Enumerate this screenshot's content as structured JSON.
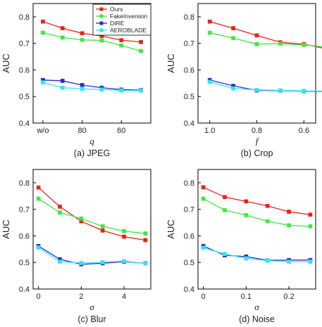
{
  "figure": {
    "background": "#ffffff"
  },
  "legend": {
    "entries": [
      {
        "name": "Ours",
        "color": "#e8221c",
        "marker": "square"
      },
      {
        "name": "FakeInversion",
        "color": "#3fe83f",
        "marker": "square"
      },
      {
        "name": "DIRE",
        "color": "#2a2ad0",
        "marker": "square"
      },
      {
        "name": "AEROBLADE",
        "color": "#2ee8f0",
        "marker": "square"
      }
    ]
  },
  "chart_data": [
    {
      "type": "line",
      "caption": "(a) JPEG",
      "xlabel": "q",
      "ylabel": "AUC",
      "ylim": [
        0.4,
        0.85
      ],
      "yticks": [
        0.4,
        0.5,
        0.6,
        0.7,
        0.8
      ],
      "xlim": [
        -0.5,
        5.5
      ],
      "xticks": [
        {
          "v": 0,
          "label": "w/o"
        },
        {
          "v": 2,
          "label": "80"
        },
        {
          "v": 4,
          "label": "60"
        }
      ],
      "x": [
        0,
        1,
        2,
        3,
        4,
        5
      ],
      "series": [
        {
          "name": "Ours",
          "color": "#e8221c",
          "values": [
            0.782,
            0.757,
            0.738,
            0.728,
            0.712,
            0.705
          ]
        },
        {
          "name": "FakeInversion",
          "color": "#3fe83f",
          "values": [
            0.74,
            0.722,
            0.713,
            0.711,
            0.692,
            0.671
          ]
        },
        {
          "name": "DIRE",
          "color": "#2a2ad0",
          "values": [
            0.562,
            0.559,
            0.543,
            0.533,
            0.526,
            0.524
          ]
        },
        {
          "name": "AEROBLADE",
          "color": "#2ee8f0",
          "values": [
            0.553,
            0.533,
            0.529,
            0.526,
            0.523,
            0.522
          ]
        }
      ]
    },
    {
      "type": "line",
      "caption": "(b) Crop",
      "xlabel": "f",
      "ylabel": "AUC",
      "ylim": [
        0.4,
        0.85
      ],
      "yticks": [
        0.4,
        0.5,
        0.6,
        0.7,
        0.8
      ],
      "xlim": [
        1.05,
        0.55
      ],
      "xticks": [
        {
          "v": 1.0,
          "label": "1.0"
        },
        {
          "v": 0.8,
          "label": "0.8"
        },
        {
          "v": 0.6,
          "label": "0.6"
        }
      ],
      "x": [
        1.0,
        0.9,
        0.8,
        0.7,
        0.6,
        0.5
      ],
      "series": [
        {
          "name": "Ours",
          "color": "#e8221c",
          "values": [
            0.782,
            0.757,
            0.73,
            0.704,
            0.697,
            0.679
          ]
        },
        {
          "name": "FakeInversion",
          "color": "#3fe83f",
          "values": [
            0.74,
            0.72,
            0.697,
            0.699,
            0.694,
            0.686
          ]
        },
        {
          "name": "DIRE",
          "color": "#2a2ad0",
          "values": [
            0.562,
            0.54,
            0.523,
            0.522,
            0.52,
            0.519
          ]
        },
        {
          "name": "AEROBLADE",
          "color": "#2ee8f0",
          "values": [
            0.555,
            0.53,
            0.525,
            0.523,
            0.521,
            0.52
          ]
        }
      ]
    },
    {
      "type": "line",
      "caption": "(c) Blur",
      "xlabel": "σ",
      "ylabel": "AUC",
      "ylim": [
        0.4,
        0.85
      ],
      "yticks": [
        0.4,
        0.5,
        0.6,
        0.7,
        0.8
      ],
      "xlim": [
        -0.25,
        5.25
      ],
      "xticks": [
        {
          "v": 0,
          "label": "0"
        },
        {
          "v": 2,
          "label": "2"
        },
        {
          "v": 4,
          "label": "4"
        }
      ],
      "x": [
        0,
        1,
        2,
        3,
        4,
        5
      ],
      "series": [
        {
          "name": "Ours",
          "color": "#e8221c",
          "values": [
            0.782,
            0.71,
            0.655,
            0.62,
            0.597,
            0.584
          ]
        },
        {
          "name": "FakeInversion",
          "color": "#3fe83f",
          "values": [
            0.74,
            0.688,
            0.665,
            0.636,
            0.618,
            0.609
          ]
        },
        {
          "name": "DIRE",
          "color": "#2a2ad0",
          "values": [
            0.562,
            0.512,
            0.493,
            0.497,
            0.503,
            0.497
          ]
        },
        {
          "name": "AEROBLADE",
          "color": "#2ee8f0",
          "values": [
            0.556,
            0.503,
            0.498,
            0.501,
            0.505,
            0.496
          ]
        }
      ]
    },
    {
      "type": "line",
      "caption": "(d) Noise",
      "xlabel": "σ",
      "ylabel": "AUC",
      "ylim": [
        0.4,
        0.85
      ],
      "yticks": [
        0.4,
        0.5,
        0.6,
        0.7,
        0.8
      ],
      "xlim": [
        -0.0125,
        0.2625
      ],
      "xticks": [
        {
          "v": 0,
          "label": "0"
        },
        {
          "v": 0.1,
          "label": "0.1"
        },
        {
          "v": 0.2,
          "label": "0.2"
        }
      ],
      "x": [
        0,
        0.05,
        0.1,
        0.15,
        0.2,
        0.25
      ],
      "series": [
        {
          "name": "Ours",
          "color": "#e8221c",
          "values": [
            0.783,
            0.746,
            0.73,
            0.713,
            0.691,
            0.68
          ]
        },
        {
          "name": "FakeInversion",
          "color": "#3fe83f",
          "values": [
            0.74,
            0.697,
            0.678,
            0.655,
            0.64,
            0.636
          ]
        },
        {
          "name": "DIRE",
          "color": "#2a2ad0",
          "values": [
            0.562,
            0.527,
            0.522,
            0.508,
            0.509,
            0.509
          ]
        },
        {
          "name": "AEROBLADE",
          "color": "#2ee8f0",
          "values": [
            0.555,
            0.532,
            0.515,
            0.507,
            0.503,
            0.503
          ]
        }
      ]
    }
  ]
}
